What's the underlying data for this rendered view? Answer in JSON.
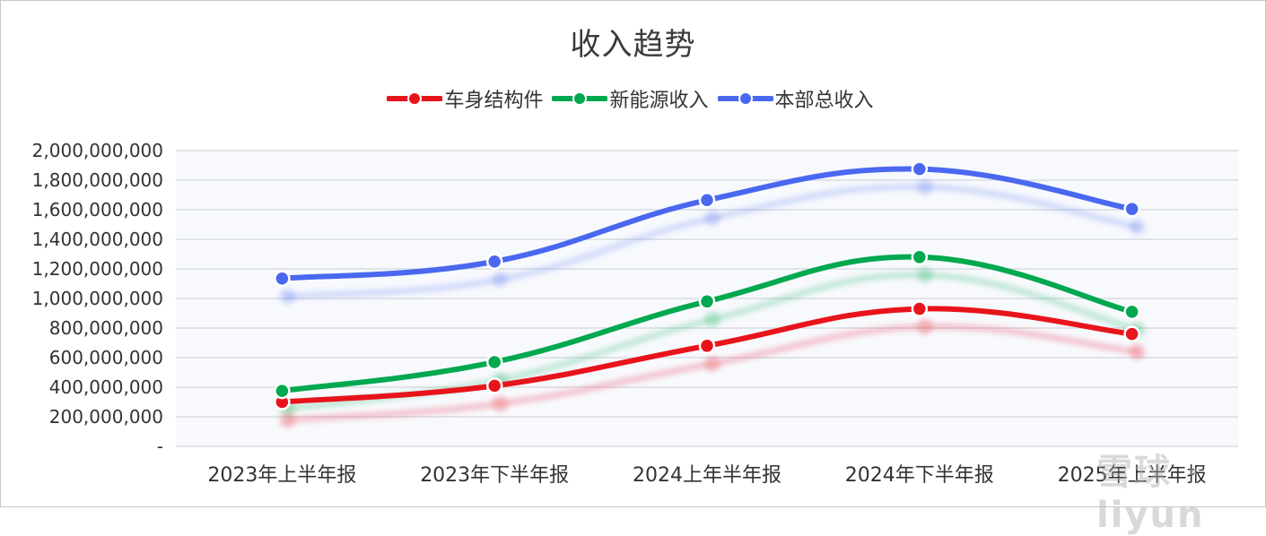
{
  "chart_data": {
    "type": "line",
    "title": "收入趋势",
    "categories": [
      "2023年上半年报",
      "2023年下半年报",
      "2024上年半年报",
      "2024年下半年报",
      "2025年上半年报"
    ],
    "series": [
      {
        "name": "车身结构件",
        "color": "#e8141b",
        "values": [
          300000000,
          410000000,
          680000000,
          930000000,
          760000000
        ]
      },
      {
        "name": "新能源收入",
        "color": "#00a84f",
        "values": [
          375000000,
          570000000,
          980000000,
          1280000000,
          910000000
        ]
      },
      {
        "name": "本部总收入",
        "color": "#4a68ef",
        "values": [
          1135000000,
          1250000000,
          1665000000,
          1875000000,
          1605000000
        ]
      }
    ],
    "ylim": [
      0,
      2000000000
    ],
    "yticks": [
      {
        "value": 2000000000,
        "label": "2,000,000,000"
      },
      {
        "value": 1800000000,
        "label": "1,800,000,000"
      },
      {
        "value": 1600000000,
        "label": "1,600,000,000"
      },
      {
        "value": 1400000000,
        "label": "1,400,000,000"
      },
      {
        "value": 1200000000,
        "label": "1,200,000,000"
      },
      {
        "value": 1000000000,
        "label": "1,000,000,000"
      },
      {
        "value": 800000000,
        "label": "800,000,000"
      },
      {
        "value": 600000000,
        "label": "600,000,000"
      },
      {
        "value": 400000000,
        "label": "400,000,000"
      },
      {
        "value": 200000000,
        "label": "200,000,000"
      },
      {
        "value": 0,
        "label": "-"
      }
    ],
    "grid": true,
    "legend_position": "top-center"
  },
  "watermark": "雪球 · liyun"
}
